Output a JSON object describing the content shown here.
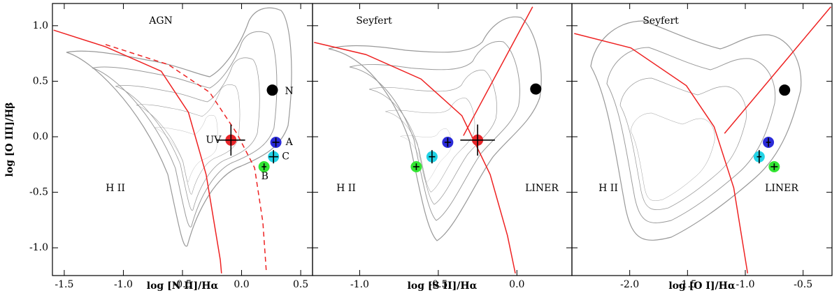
{
  "chart_data": [
    {
      "type": "scatter",
      "xlabel": "log [N II]/Hα",
      "ylabel": "log [O III]/Hβ",
      "xlim": [
        -1.6,
        0.6
      ],
      "ylim": [
        -1.25,
        1.2
      ],
      "xticks": [
        -1.5,
        {
          "value": -1,
          "label": "-1.0"
        },
        -0.5,
        {
          "value": 0,
          "label": "0.0"
        },
        0.5
      ],
      "yticks": [
        {
          "value": -1,
          "label": "-1.0"
        },
        -0.5,
        {
          "value": 0,
          "label": "0.0"
        },
        0.5,
        {
          "value": 1,
          "label": "1.0"
        }
      ],
      "annotations": [
        "AGN",
        "H II"
      ],
      "curves": [
        {
          "color": "#ee2222",
          "dash": false,
          "x": [
            -1.59,
            -1.15,
            -0.68,
            -0.45,
            -0.3,
            -0.18,
            -0.17
          ],
          "y": [
            0.96,
            0.81,
            0.59,
            0.22,
            -0.34,
            -1.11,
            -1.23
          ]
        },
        {
          "color": "#ee2222",
          "dash": true,
          "x": [
            -1.15,
            -0.62,
            -0.27,
            -0.04,
            0.11,
            0.18,
            0.21
          ],
          "y": [
            0.83,
            0.65,
            0.4,
            0.03,
            -0.28,
            -0.77,
            -1.23
          ]
        }
      ],
      "series": [
        {
          "name": "N",
          "color": "#000000",
          "x": [
            0.26
          ],
          "values": [
            0.42
          ],
          "xerr": [
            0.02
          ],
          "yerr": [
            0.02
          ]
        },
        {
          "name": "UV",
          "color": "#e8262a",
          "x": [
            -0.09
          ],
          "values": [
            -0.03
          ],
          "xerr": [
            0.12
          ],
          "yerr": [
            0.14
          ]
        },
        {
          "name": "A",
          "color": "#2b2bd9",
          "x": [
            0.29
          ],
          "values": [
            -0.05
          ],
          "xerr": [
            0.03
          ],
          "yerr": [
            0.04
          ]
        },
        {
          "name": "C",
          "color": "#22d3e6",
          "x": [
            0.27
          ],
          "values": [
            -0.18
          ],
          "xerr": [
            0.04
          ],
          "yerr": [
            0.06
          ]
        },
        {
          "name": "B",
          "color": "#33e633",
          "x": [
            0.19
          ],
          "values": [
            -0.27
          ],
          "xerr": [
            0.02
          ],
          "yerr": [
            0.03
          ]
        }
      ]
    },
    {
      "type": "scatter",
      "xlabel": "log [S II]/Hα",
      "xlim": [
        -1.3,
        0.35
      ],
      "ylim": [
        -1.25,
        1.2
      ],
      "xticks": [
        {
          "value": -1,
          "label": "-1.0"
        },
        -0.5,
        {
          "value": 0,
          "label": "0.0"
        }
      ],
      "yticks": [
        -1,
        -0.5,
        0,
        0.5,
        1
      ],
      "annotations": [
        "Seyfert",
        "H II",
        "LINER"
      ],
      "curves": [
        {
          "color": "#ee2222",
          "dash": false,
          "x": [
            -1.29,
            -0.96,
            -0.61,
            -0.35,
            -0.17,
            -0.06,
            -0.01
          ],
          "y": [
            0.85,
            0.74,
            0.52,
            0.19,
            -0.34,
            -0.89,
            -1.23
          ]
        },
        {
          "color": "#ee2222",
          "dash": false,
          "x": [
            -0.34,
            0.1
          ],
          "y": [
            0.01,
            1.17
          ]
        }
      ],
      "series": [
        {
          "color": "#000000",
          "x": [
            0.12
          ],
          "values": [
            0.43
          ],
          "xerr": [
            0.02
          ],
          "yerr": [
            0.02
          ]
        },
        {
          "color": "#e8262a",
          "x": [
            -0.25
          ],
          "values": [
            -0.03
          ],
          "xerr": [
            0.11
          ],
          "yerr": [
            0.14
          ]
        },
        {
          "color": "#2b2bd9",
          "x": [
            -0.44
          ],
          "values": [
            -0.05
          ],
          "xerr": [
            0.02
          ],
          "yerr": [
            0.04
          ]
        },
        {
          "color": "#22d3e6",
          "x": [
            -0.54
          ],
          "values": [
            -0.18
          ],
          "xerr": [
            0.02
          ],
          "yerr": [
            0.06
          ]
        },
        {
          "color": "#33e633",
          "x": [
            -0.64
          ],
          "values": [
            -0.27
          ],
          "xerr": [
            0.02
          ],
          "yerr": [
            0.03
          ]
        }
      ]
    },
    {
      "type": "scatter",
      "xlabel": "log [O I]/Hα",
      "xlim": [
        -2.5,
        -0.25
      ],
      "ylim": [
        -1.25,
        1.2
      ],
      "xticks": [
        {
          "value": -2,
          "label": "-2.0"
        },
        -1.5,
        {
          "value": -1,
          "label": "-1.0"
        },
        -0.5
      ],
      "yticks": [
        -1,
        -0.5,
        0,
        0.5,
        1
      ],
      "annotations": [
        "Seyfert",
        "H II",
        "LINER"
      ],
      "curves": [
        {
          "color": "#ee2222",
          "dash": false,
          "x": [
            -2.48,
            -1.99,
            -1.51,
            -1.27,
            -1.1,
            -0.98
          ],
          "y": [
            0.93,
            0.8,
            0.46,
            0.09,
            -0.46,
            -1.23
          ]
        },
        {
          "color": "#ee2222",
          "dash": false,
          "x": [
            -1.18,
            -0.26
          ],
          "y": [
            0.03,
            1.17
          ]
        }
      ],
      "series": [
        {
          "color": "#000000",
          "x": [
            -0.66
          ],
          "values": [
            0.42
          ],
          "xerr": [
            0.02
          ],
          "yerr": [
            0.02
          ]
        },
        {
          "color": "#2b2bd9",
          "x": [
            -0.8
          ],
          "values": [
            -0.05
          ],
          "xerr": [
            0.02
          ],
          "yerr": [
            0.04
          ]
        },
        {
          "color": "#22d3e6",
          "x": [
            -0.88
          ],
          "values": [
            -0.18
          ],
          "xerr": [
            0.02
          ],
          "yerr": [
            0.06
          ]
        },
        {
          "color": "#33e633",
          "x": [
            -0.75
          ],
          "values": [
            -0.27
          ],
          "xerr": [
            0.03
          ],
          "yerr": [
            0.03
          ]
        }
      ]
    }
  ]
}
